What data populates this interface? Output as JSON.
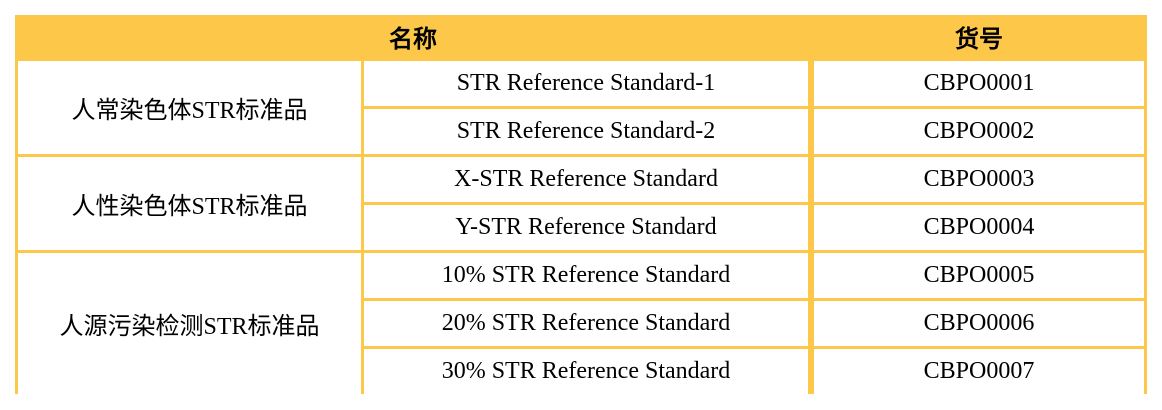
{
  "header": {
    "name": "名称",
    "code": "货号"
  },
  "border_color": "#FDC84A",
  "groups": [
    {
      "category": "人常染色体STR标准品",
      "items": [
        {
          "name": "STR Reference Standard-1",
          "code": "CBPO0001"
        },
        {
          "name": "STR Reference Standard-2",
          "code": "CBPO0002"
        }
      ]
    },
    {
      "category": "人性染色体STR标准品",
      "items": [
        {
          "name": "X-STR Reference Standard",
          "code": "CBPO0003"
        },
        {
          "name": "Y-STR Reference Standard",
          "code": "CBPO0004"
        }
      ]
    },
    {
      "category": "人源污染检测STR标准品",
      "items": [
        {
          "name": "10% STR Reference Standard",
          "code": "CBPO0005"
        },
        {
          "name": "20% STR Reference Standard",
          "code": "CBPO0006"
        },
        {
          "name": "30% STR Reference Standard",
          "code": "CBPO0007"
        }
      ]
    }
  ]
}
